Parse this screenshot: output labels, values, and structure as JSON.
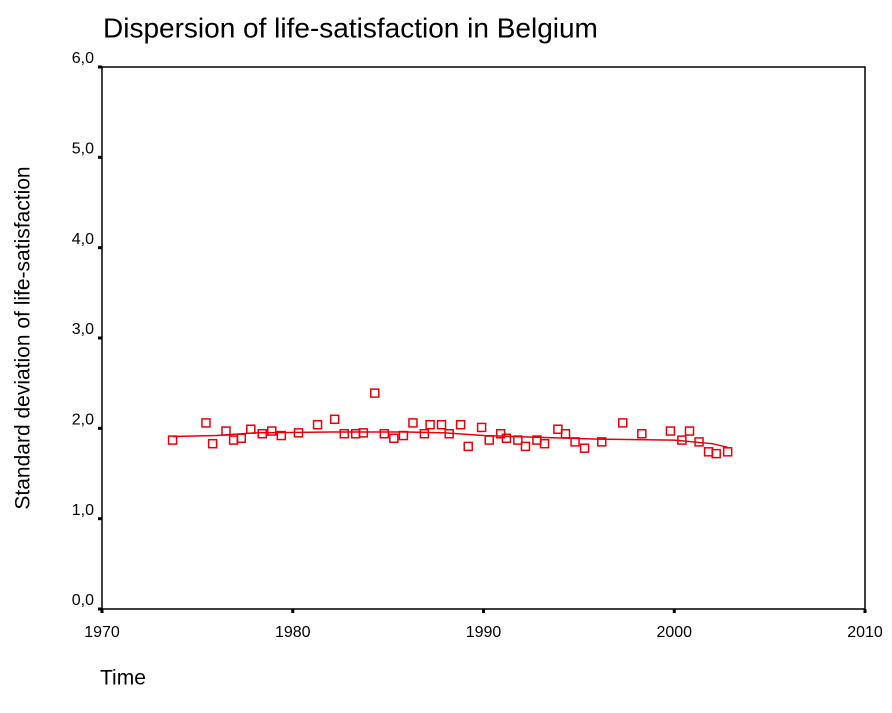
{
  "chart_data": {
    "type": "scatter",
    "title": "Dispersion of life-satisfaction in Belgium",
    "xlabel": "Time",
    "ylabel": "Standard deviation of life-satisfaction",
    "xlim": [
      1970,
      2010
    ],
    "xticks": [
      1970,
      1980,
      1990,
      2000,
      2010
    ],
    "ylim": [
      0,
      6
    ],
    "yticks": [
      {
        "value": 0,
        "label": "0,0"
      },
      {
        "value": 1,
        "label": "1,0"
      },
      {
        "value": 2,
        "label": "2,0"
      },
      {
        "value": 3,
        "label": "3,0"
      },
      {
        "value": 4,
        "label": "4,0"
      },
      {
        "value": 5,
        "label": "5,0"
      },
      {
        "value": 6,
        "label": "6,0"
      }
    ],
    "series": [
      {
        "mode": "markers",
        "color": "#e8000b",
        "x": [
          1973.7,
          1975.45,
          1975.8,
          1976.5,
          1976.9,
          1977.3,
          1977.8,
          1978.4,
          1978.9,
          1979.4,
          1980.3,
          1981.3,
          1982.2,
          1982.7,
          1983.3,
          1983.7,
          1984.3,
          1984.8,
          1985.3,
          1985.8,
          1986.3,
          1986.9,
          1987.2,
          1987.8,
          1988.2,
          1988.8,
          1989.2,
          1989.9,
          1990.3,
          1990.9,
          1991.2,
          1991.8,
          1992.2,
          1992.8,
          1993.2,
          1993.9,
          1994.3,
          1994.8,
          1995.3,
          1996.2,
          1997.3,
          1998.3,
          1999.8,
          2000.4,
          2000.8,
          2001.3,
          2001.8,
          2002.2,
          2002.8
        ],
        "values": [
          1.87,
          2.06,
          1.83,
          1.97,
          1.87,
          1.89,
          1.99,
          1.94,
          1.97,
          1.92,
          1.95,
          2.04,
          2.1,
          1.94,
          1.94,
          1.95,
          2.39,
          1.94,
          1.89,
          1.92,
          2.06,
          1.94,
          2.04,
          2.04,
          1.94,
          2.04,
          1.8,
          2.01,
          1.87,
          1.94,
          1.89,
          1.87,
          1.8,
          1.87,
          1.83,
          1.99,
          1.94,
          1.85,
          1.78,
          1.85,
          2.06,
          1.94,
          1.97,
          1.87,
          1.97,
          1.85,
          1.74,
          1.72,
          1.74
        ]
      },
      {
        "mode": "line",
        "color": "#e8000b",
        "x": [
          1973.7,
          1976,
          1978,
          1982,
          1986,
          1988,
          1990,
          1993,
          1996,
          2000,
          2002,
          2002.8
        ],
        "values": [
          1.91,
          1.92,
          1.95,
          1.96,
          1.96,
          1.95,
          1.92,
          1.9,
          1.88,
          1.87,
          1.83,
          1.79
        ]
      }
    ]
  }
}
